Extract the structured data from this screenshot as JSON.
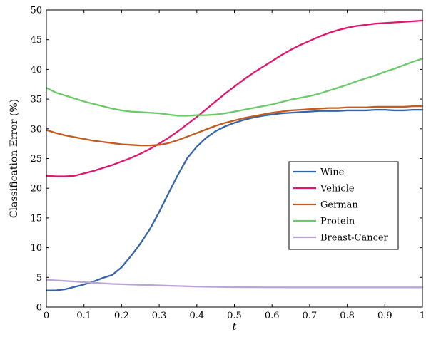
{
  "chart_data": {
    "type": "line",
    "xlabel": "t",
    "ylabel": "Classification Error (%)",
    "xlim": [
      0,
      1
    ],
    "ylim": [
      0,
      50
    ],
    "x_ticks": [
      0,
      0.1,
      0.2,
      0.3,
      0.4,
      0.5,
      0.6,
      0.7,
      0.8,
      0.9,
      1
    ],
    "x_tick_labels": [
      "0",
      "0.1",
      "0.2",
      "0.3",
      "0.4",
      "0.5",
      "0.6",
      "0.7",
      "0.8",
      "0.9",
      "1"
    ],
    "y_ticks": [
      0,
      5,
      10,
      15,
      20,
      25,
      30,
      35,
      40,
      45,
      50
    ],
    "y_tick_labels": [
      "0",
      "5",
      "10",
      "15",
      "20",
      "25",
      "30",
      "35",
      "40",
      "45",
      "50"
    ],
    "grid": false,
    "legend_position": "center-right",
    "x": [
      0,
      0.025,
      0.05,
      0.075,
      0.1,
      0.125,
      0.15,
      0.175,
      0.2,
      0.225,
      0.25,
      0.275,
      0.3,
      0.325,
      0.35,
      0.375,
      0.4,
      0.425,
      0.45,
      0.475,
      0.5,
      0.525,
      0.55,
      0.575,
      0.6,
      0.625,
      0.65,
      0.675,
      0.7,
      0.725,
      0.75,
      0.775,
      0.8,
      0.825,
      0.85,
      0.875,
      0.9,
      0.925,
      0.95,
      0.975,
      1.0
    ],
    "series": [
      {
        "name": "Wine",
        "color": "#3565a8",
        "values": [
          2.8,
          2.8,
          3.0,
          3.4,
          3.8,
          4.3,
          4.9,
          5.4,
          6.7,
          8.6,
          10.7,
          13.1,
          16.0,
          19.2,
          22.3,
          25.1,
          27.0,
          28.5,
          29.6,
          30.4,
          31.0,
          31.5,
          31.9,
          32.2,
          32.4,
          32.6,
          32.7,
          32.8,
          32.9,
          33.0,
          33.0,
          33.0,
          33.1,
          33.1,
          33.1,
          33.2,
          33.2,
          33.1,
          33.1,
          33.2,
          33.2
        ]
      },
      {
        "name": "Vehicle",
        "color": "#e0166e",
        "values": [
          22.1,
          22.0,
          22.0,
          22.1,
          22.5,
          22.9,
          23.4,
          23.9,
          24.5,
          25.1,
          25.8,
          26.6,
          27.5,
          28.5,
          29.6,
          30.8,
          32.0,
          33.3,
          34.6,
          35.9,
          37.1,
          38.3,
          39.4,
          40.4,
          41.4,
          42.4,
          43.3,
          44.1,
          44.8,
          45.5,
          46.1,
          46.6,
          47.0,
          47.3,
          47.5,
          47.7,
          47.8,
          47.9,
          48.0,
          48.1,
          48.2
        ]
      },
      {
        "name": "German",
        "color": "#c15b1e",
        "values": [
          29.8,
          29.3,
          28.9,
          28.6,
          28.3,
          28.0,
          27.8,
          27.6,
          27.4,
          27.3,
          27.2,
          27.2,
          27.3,
          27.6,
          28.1,
          28.7,
          29.3,
          29.9,
          30.5,
          31.0,
          31.4,
          31.8,
          32.1,
          32.4,
          32.7,
          32.9,
          33.1,
          33.2,
          33.3,
          33.4,
          33.5,
          33.5,
          33.6,
          33.6,
          33.6,
          33.7,
          33.7,
          33.7,
          33.7,
          33.8,
          33.8
        ]
      },
      {
        "name": "Protein",
        "color": "#6cc96a",
        "values": [
          36.9,
          36.1,
          35.6,
          35.1,
          34.6,
          34.2,
          33.8,
          33.4,
          33.1,
          32.9,
          32.8,
          32.7,
          32.6,
          32.4,
          32.2,
          32.2,
          32.3,
          32.3,
          32.4,
          32.6,
          32.9,
          33.2,
          33.5,
          33.8,
          34.1,
          34.5,
          34.9,
          35.2,
          35.5,
          35.9,
          36.4,
          36.9,
          37.4,
          38.0,
          38.5,
          39.0,
          39.6,
          40.1,
          40.7,
          41.3,
          41.8
        ]
      },
      {
        "name": "Breast-Cancer",
        "color": "#b9a6d6",
        "values": [
          4.6,
          4.5,
          4.4,
          4.3,
          4.2,
          4.1,
          4.0,
          3.9,
          3.85,
          3.8,
          3.75,
          3.7,
          3.65,
          3.6,
          3.55,
          3.5,
          3.45,
          3.42,
          3.4,
          3.38,
          3.36,
          3.35,
          3.34,
          3.33,
          3.33,
          3.33,
          3.32,
          3.32,
          3.32,
          3.32,
          3.32,
          3.32,
          3.32,
          3.32,
          3.32,
          3.32,
          3.32,
          3.32,
          3.32,
          3.32,
          3.32
        ]
      }
    ]
  }
}
